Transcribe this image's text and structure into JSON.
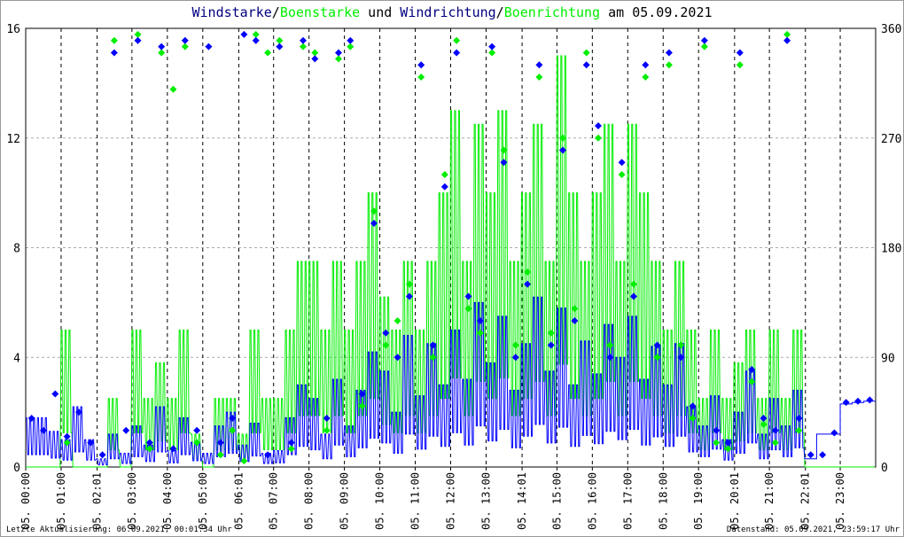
{
  "title": {
    "part1": "Windstarke",
    "sep1": "/",
    "part2": "Boenstarke",
    "part3": " und ",
    "part4": "Windrichtung",
    "sep2": "/",
    "part5": "Boenrichtung",
    "part6": " am 05.09.2021"
  },
  "footer": {
    "left": "Letzte Aktualisierung: 06.09.2021, 00:01:34 Uhr",
    "right": "Datenstand: 05.09.2021, 23:59:17 Uhr"
  },
  "colors": {
    "wind": "#0000ff",
    "gust": "#00ee00",
    "title_dark": "#000080",
    "grid": "#aaaaaa"
  },
  "chart_data": {
    "type": "line",
    "xlim": [
      "05. 00:00",
      "05. 24:00"
    ],
    "x_tick_labels": [
      "05. 00:00",
      "05. 01:00",
      "05. 02:01",
      "05. 03:00",
      "05. 04:00",
      "05. 05:00",
      "05. 06:01",
      "05. 07:00",
      "05. 08:00",
      "05. 09:00",
      "05. 10:00",
      "05. 11:00",
      "05. 12:00",
      "05. 13:00",
      "05. 14:01",
      "05. 15:00",
      "05. 16:00",
      "05. 17:00",
      "05. 18:00",
      "05. 19:00",
      "05. 20:01",
      "05. 21:00",
      "05. 22:01",
      "05. 23:00"
    ],
    "y_left": {
      "ylim": [
        0,
        16
      ],
      "ticks": [
        0,
        4,
        8,
        12,
        16
      ]
    },
    "y_right": {
      "ylim": [
        0,
        360
      ],
      "ticks": [
        0,
        90,
        180,
        270,
        360
      ]
    },
    "grid": true,
    "x": [
      "00:00",
      "00:20",
      "00:40",
      "01:00",
      "01:20",
      "01:40",
      "02:00",
      "02:20",
      "02:40",
      "03:00",
      "03:20",
      "03:40",
      "04:00",
      "04:20",
      "04:40",
      "05:00",
      "05:20",
      "05:40",
      "06:00",
      "06:20",
      "06:40",
      "07:00",
      "07:20",
      "07:40",
      "08:00",
      "08:20",
      "08:40",
      "09:00",
      "09:20",
      "09:40",
      "10:00",
      "10:20",
      "10:40",
      "11:00",
      "11:20",
      "11:40",
      "12:00",
      "12:20",
      "12:40",
      "13:00",
      "13:20",
      "13:40",
      "14:00",
      "14:20",
      "14:40",
      "15:00",
      "15:20",
      "15:40",
      "16:00",
      "16:20",
      "16:40",
      "17:00",
      "17:20",
      "17:40",
      "18:00",
      "18:20",
      "18:40",
      "19:00",
      "19:20",
      "19:40",
      "20:00",
      "20:20",
      "20:40",
      "21:00",
      "21:20",
      "21:40",
      "22:00",
      "22:20",
      "22:40",
      "23:00",
      "23:20",
      "23:40"
    ],
    "series": [
      {
        "name": "Windstarke",
        "axis": "left",
        "kind": "line",
        "color": "#0000ff",
        "values": [
          1.8,
          1.8,
          1.3,
          1.0,
          2.2,
          1.0,
          0.3,
          1.2,
          0.5,
          1.5,
          0.8,
          2.2,
          0.6,
          1.8,
          0.9,
          0.5,
          1.5,
          2.0,
          0.8,
          1.6,
          0.5,
          0.6,
          1.8,
          3.0,
          2.5,
          1.2,
          3.2,
          1.5,
          2.8,
          4.2,
          3.5,
          2.0,
          4.8,
          2.6,
          4.5,
          3.0,
          5.0,
          3.2,
          6.0,
          3.8,
          5.5,
          2.8,
          4.5,
          6.2,
          3.5,
          5.8,
          3.0,
          4.6,
          3.4,
          5.2,
          4.0,
          5.5,
          3.2,
          4.4,
          3.0,
          4.5,
          2.2,
          1.5,
          2.6,
          1.0,
          2.0,
          3.5,
          1.2,
          2.5,
          1.5,
          2.8,
          0.3,
          1.2,
          1.2,
          2.3,
          2.35,
          2.4
        ]
      },
      {
        "name": "Boenstarke",
        "axis": "left",
        "kind": "line",
        "color": "#00ee00",
        "values": [
          0,
          0,
          0,
          5,
          0,
          0,
          0,
          2.5,
          0,
          5,
          2.5,
          3.8,
          2.5,
          5,
          1.2,
          0,
          2.5,
          2.5,
          1.2,
          5,
          2.5,
          2.5,
          5,
          7.5,
          7.5,
          5,
          7.5,
          5,
          7.5,
          10,
          6.2,
          5,
          7.5,
          5,
          7.5,
          10,
          13,
          7.5,
          12.5,
          10,
          13,
          7.5,
          10,
          12.5,
          7.5,
          15,
          10,
          7.5,
          10,
          12.5,
          7.5,
          12.5,
          10,
          7.5,
          5,
          7.5,
          5,
          2.5,
          5,
          2.5,
          3.8,
          5,
          2.5,
          5,
          2.5,
          5,
          0,
          0,
          0,
          0,
          0,
          0
        ]
      },
      {
        "name": "Windrichtung",
        "axis": "right",
        "kind": "scatter",
        "color": "#0000ff",
        "values": [
          40,
          30,
          60,
          25,
          45,
          20,
          10,
          340,
          30,
          350,
          20,
          345,
          15,
          350,
          30,
          345,
          20,
          40,
          355,
          350,
          10,
          345,
          20,
          350,
          335,
          40,
          340,
          350,
          60,
          200,
          110,
          90,
          140,
          330,
          100,
          230,
          340,
          140,
          120,
          345,
          250,
          90,
          150,
          330,
          100,
          260,
          120,
          330,
          280,
          90,
          250,
          140,
          330,
          100,
          340,
          90,
          50,
          350,
          30,
          20,
          340,
          80,
          40,
          30,
          350,
          40,
          10,
          10,
          28,
          53,
          54,
          55
        ]
      },
      {
        "name": "Boenrichtung",
        "axis": "right",
        "kind": "scatter",
        "color": "#00ee00",
        "values": [
          null,
          null,
          null,
          20,
          null,
          null,
          null,
          350,
          null,
          355,
          15,
          340,
          310,
          345,
          20,
          null,
          10,
          30,
          5,
          355,
          340,
          350,
          15,
          345,
          340,
          30,
          335,
          345,
          50,
          210,
          100,
          120,
          150,
          320,
          90,
          240,
          350,
          130,
          110,
          340,
          260,
          100,
          160,
          320,
          110,
          270,
          130,
          340,
          270,
          100,
          240,
          150,
          320,
          90,
          330,
          100,
          40,
          345,
          20,
          15,
          330,
          70,
          35,
          20,
          355,
          30,
          null,
          null,
          null,
          null,
          null,
          null
        ]
      }
    ]
  }
}
